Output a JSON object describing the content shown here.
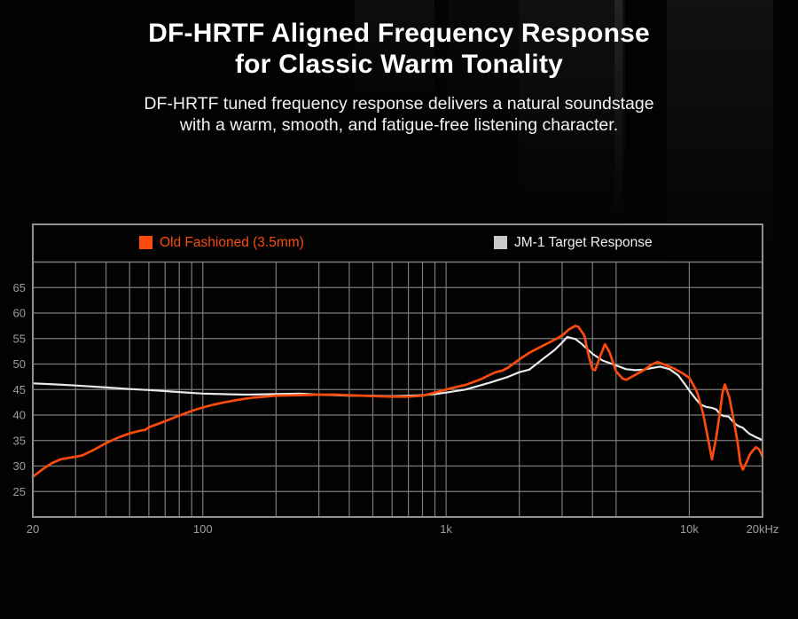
{
  "page": {
    "title_line1": "DF-HRTF Aligned Frequency Response",
    "title_line2": "for Classic Warm Tonality",
    "subtitle_line1": "DF-HRTF tuned frequency response delivers a natural soundstage",
    "subtitle_line2": "with a warm, smooth, and fatigue-free listening character."
  },
  "colors": {
    "background": "#020202",
    "title_text": "#ffffff",
    "subtitle_text": "#f2f2f2",
    "grid_line": "#7b7b7b",
    "chart_border": "#8f8f8f",
    "tick_label": "#9d9d9d",
    "accent_orange": "#fb4b0c"
  },
  "chart_data": {
    "type": "line",
    "x_scale": "log",
    "x_unit": "Hz",
    "x_range_hz": [
      20,
      20000
    ],
    "y_unit": "dB",
    "y_range_db": [
      20,
      70
    ],
    "y_tick_step": 5,
    "y_labeled_ticks_db": [
      65,
      60,
      55,
      50,
      45,
      40,
      35,
      30,
      25
    ],
    "x_gridlines_hz": [
      20,
      30,
      40,
      50,
      60,
      70,
      80,
      90,
      100,
      200,
      300,
      400,
      500,
      600,
      700,
      800,
      900,
      1000,
      2000,
      3000,
      4000,
      5000,
      10000,
      20000
    ],
    "x_tick_labels": [
      {
        "hz": 20,
        "text": "20"
      },
      {
        "hz": 100,
        "text": "100"
      },
      {
        "hz": 1000,
        "text": "1k"
      },
      {
        "hz": 10000,
        "text": "10k"
      },
      {
        "hz": 20000,
        "text": "20kHz"
      }
    ],
    "grid_on": true,
    "legend_position": "top-band",
    "series": [
      {
        "name": "Old Fashioned (3.5mm)",
        "color": "#fb4b0c",
        "swatch_color": "#fb4b0c",
        "label_color": "#fb4b0c",
        "stroke_width": 2.7,
        "points_hz_db": [
          [
            20,
            27.9
          ],
          [
            22,
            29.4
          ],
          [
            24,
            30.6
          ],
          [
            26,
            31.3
          ],
          [
            28,
            31.6
          ],
          [
            30,
            31.8
          ],
          [
            32,
            32.1
          ],
          [
            35,
            33.0
          ],
          [
            38,
            33.9
          ],
          [
            40,
            34.5
          ],
          [
            45,
            35.6
          ],
          [
            50,
            36.4
          ],
          [
            55,
            36.9
          ],
          [
            58,
            37.1
          ],
          [
            60,
            37.6
          ],
          [
            65,
            38.2
          ],
          [
            70,
            38.8
          ],
          [
            80,
            39.9
          ],
          [
            90,
            40.8
          ],
          [
            100,
            41.5
          ],
          [
            110,
            42.0
          ],
          [
            120,
            42.4
          ],
          [
            140,
            43.0
          ],
          [
            160,
            43.4
          ],
          [
            180,
            43.6
          ],
          [
            200,
            43.8
          ],
          [
            250,
            43.9
          ],
          [
            300,
            44.0
          ],
          [
            350,
            44.0
          ],
          [
            400,
            43.9
          ],
          [
            500,
            43.7
          ],
          [
            600,
            43.6
          ],
          [
            700,
            43.6
          ],
          [
            800,
            43.8
          ],
          [
            900,
            44.4
          ],
          [
            1000,
            45.0
          ],
          [
            1100,
            45.5
          ],
          [
            1200,
            45.9
          ],
          [
            1300,
            46.5
          ],
          [
            1400,
            47.1
          ],
          [
            1500,
            47.8
          ],
          [
            1600,
            48.4
          ],
          [
            1700,
            48.7
          ],
          [
            1800,
            49.3
          ],
          [
            2000,
            50.9
          ],
          [
            2200,
            52.2
          ],
          [
            2500,
            53.6
          ],
          [
            2800,
            54.8
          ],
          [
            3000,
            55.6
          ],
          [
            3200,
            56.8
          ],
          [
            3400,
            57.5
          ],
          [
            3500,
            57.3
          ],
          [
            3700,
            55.6
          ],
          [
            3850,
            51.8
          ],
          [
            4000,
            49.0
          ],
          [
            4100,
            48.8
          ],
          [
            4300,
            51.5
          ],
          [
            4500,
            53.9
          ],
          [
            4700,
            52.3
          ],
          [
            5000,
            48.6
          ],
          [
            5300,
            47.2
          ],
          [
            5500,
            46.9
          ],
          [
            5800,
            47.5
          ],
          [
            6000,
            47.9
          ],
          [
            6500,
            48.8
          ],
          [
            7000,
            49.9
          ],
          [
            7400,
            50.4
          ],
          [
            8000,
            49.8
          ],
          [
            8600,
            49.2
          ],
          [
            9300,
            48.3
          ],
          [
            10000,
            47.3
          ],
          [
            10500,
            45.5
          ],
          [
            10800,
            44.3
          ],
          [
            11400,
            40.3
          ],
          [
            11900,
            35.7
          ],
          [
            12400,
            31.3
          ],
          [
            12900,
            35.7
          ],
          [
            13400,
            40.9
          ],
          [
            13700,
            44.4
          ],
          [
            14000,
            46.0
          ],
          [
            14600,
            43.5
          ],
          [
            15200,
            39.2
          ],
          [
            15800,
            34.6
          ],
          [
            16200,
            30.7
          ],
          [
            16600,
            29.3
          ],
          [
            17300,
            31.0
          ],
          [
            17700,
            32.2
          ],
          [
            18200,
            33.0
          ],
          [
            18800,
            33.7
          ],
          [
            19400,
            33.2
          ],
          [
            20000,
            31.8
          ]
        ]
      },
      {
        "name": "JM-1 Target Response",
        "color": "#e9e9e9",
        "swatch_color": "#c9c9c9",
        "label_color": "#f0f0f0",
        "stroke_width": 2.2,
        "points_hz_db": [
          [
            20,
            46.2
          ],
          [
            25,
            46.0
          ],
          [
            30,
            45.8
          ],
          [
            40,
            45.4
          ],
          [
            50,
            45.1
          ],
          [
            60,
            44.9
          ],
          [
            70,
            44.7
          ],
          [
            80,
            44.5
          ],
          [
            100,
            44.2
          ],
          [
            120,
            44.1
          ],
          [
            150,
            44.0
          ],
          [
            200,
            44.1
          ],
          [
            250,
            44.2
          ],
          [
            300,
            44.0
          ],
          [
            400,
            43.8
          ],
          [
            500,
            43.8
          ],
          [
            600,
            43.7
          ],
          [
            700,
            43.8
          ],
          [
            800,
            43.9
          ],
          [
            900,
            44.1
          ],
          [
            1000,
            44.4
          ],
          [
            1200,
            45.0
          ],
          [
            1500,
            46.3
          ],
          [
            1800,
            47.5
          ],
          [
            2000,
            48.4
          ],
          [
            2200,
            48.9
          ],
          [
            2500,
            51.0
          ],
          [
            2800,
            52.8
          ],
          [
            3000,
            54.2
          ],
          [
            3150,
            55.3
          ],
          [
            3400,
            54.9
          ],
          [
            3600,
            54.0
          ],
          [
            4000,
            52.0
          ],
          [
            4400,
            50.7
          ],
          [
            4900,
            49.9
          ],
          [
            5500,
            49.0
          ],
          [
            6000,
            48.8
          ],
          [
            6500,
            48.9
          ],
          [
            7000,
            49.2
          ],
          [
            7600,
            49.5
          ],
          [
            8300,
            49.0
          ],
          [
            9000,
            47.8
          ],
          [
            9500,
            46.3
          ],
          [
            10000,
            44.8
          ],
          [
            10700,
            43.0
          ],
          [
            11100,
            42.1
          ],
          [
            11700,
            41.6
          ],
          [
            12400,
            41.4
          ],
          [
            12900,
            41.1
          ],
          [
            13400,
            40.1
          ],
          [
            13900,
            39.8
          ],
          [
            14500,
            39.7
          ],
          [
            15000,
            38.9
          ],
          [
            15600,
            38.1
          ],
          [
            16000,
            37.8
          ],
          [
            16600,
            37.5
          ],
          [
            17100,
            36.9
          ],
          [
            17700,
            36.3
          ],
          [
            18200,
            36.0
          ],
          [
            18700,
            35.7
          ],
          [
            19300,
            35.4
          ],
          [
            20000,
            35.1
          ]
        ]
      }
    ]
  }
}
